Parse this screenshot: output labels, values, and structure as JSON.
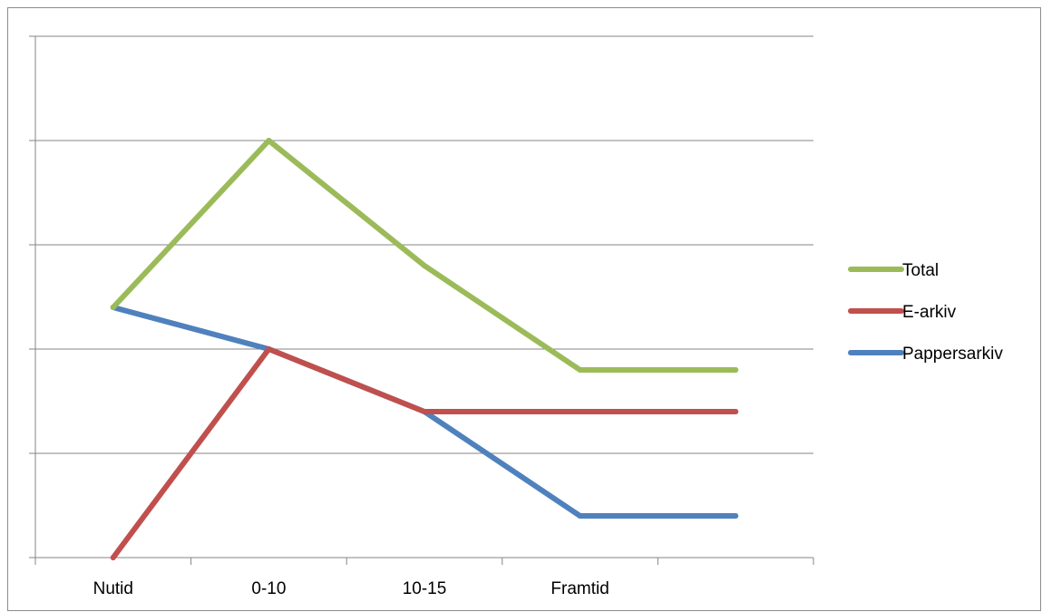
{
  "chart_data": {
    "type": "line",
    "categories": [
      "Nutid",
      "0-10",
      "10-15",
      "Framtid",
      ""
    ],
    "series": [
      {
        "name": "Total",
        "color": "#9BBB59",
        "values": [
          2.4,
          4.0,
          2.8,
          1.8,
          1.8
        ]
      },
      {
        "name": "E-arkiv",
        "color": "#C0504D",
        "values": [
          0.0,
          2.0,
          1.4,
          1.4,
          1.4
        ]
      },
      {
        "name": "Pappersarkiv",
        "color": "#4F81BD",
        "values": [
          2.4,
          2.0,
          1.4,
          0.4,
          0.4
        ]
      }
    ],
    "ylim": [
      0,
      5
    ],
    "gridlines": [
      0,
      1,
      2,
      3,
      4,
      5
    ],
    "grid": true,
    "y_tick_labels_shown": false,
    "legend_position": "right"
  }
}
